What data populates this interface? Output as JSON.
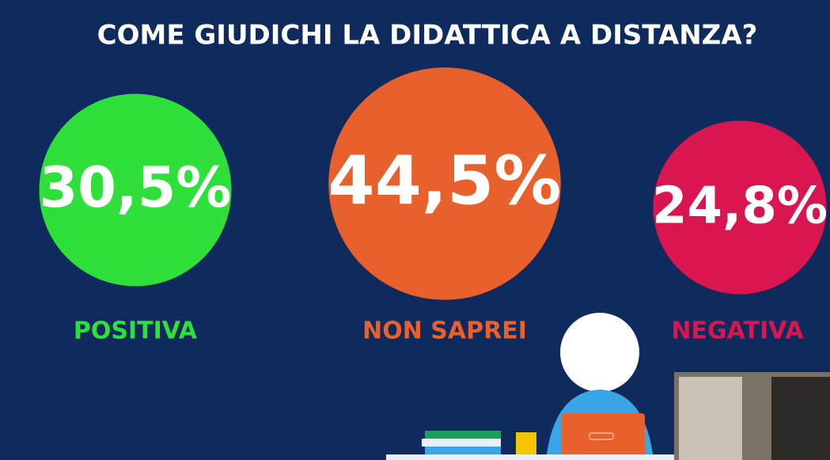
{
  "chart_data": {
    "type": "bubble",
    "title": "COME GIUDICHI LA DIDATTICA A DISTANZA?",
    "categories": [
      "POSITIVA",
      "NON SAPREI",
      "NEGATIVA"
    ],
    "values": [
      30.5,
      44.5,
      24.8
    ],
    "value_labels": [
      "30,5%",
      "44,5%",
      "24,8%"
    ],
    "colors": [
      "#2fe03a",
      "#e8602c",
      "#d91650"
    ]
  }
}
